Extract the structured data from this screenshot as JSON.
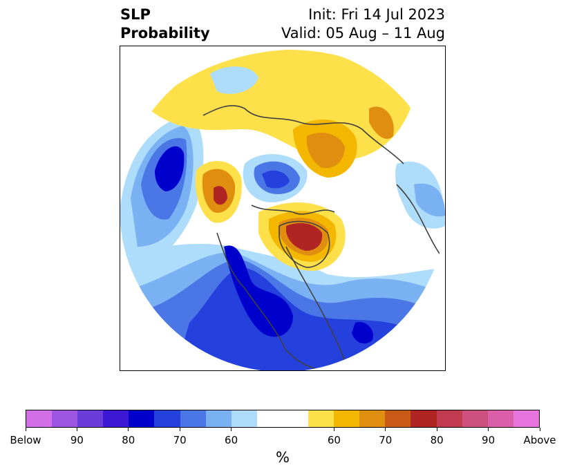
{
  "header": {
    "title_line1": "SLP",
    "title_line2": "Probability",
    "init_line": "Init: Fri 14 Jul 2023",
    "valid_line": "Valid: 05 Aug – 11 Aug"
  },
  "colorbar": {
    "colors": [
      "#d26fe6",
      "#9b55e0",
      "#6b3cd9",
      "#3d19d6",
      "#0000cd",
      "#2541dd",
      "#4b76e6",
      "#79b1f2",
      "#aedcfb",
      "#ffffff",
      "#ffffff",
      "#fde04a",
      "#f3b700",
      "#e08e10",
      "#c95a16",
      "#b02424",
      "#c03a50",
      "#ce507e",
      "#da5fa8",
      "#e676dd"
    ],
    "tick_labels": [
      "Below",
      "90",
      "80",
      "70",
      "60",
      "60",
      "70",
      "80",
      "90",
      "Above"
    ],
    "unit_label": "%"
  }
}
